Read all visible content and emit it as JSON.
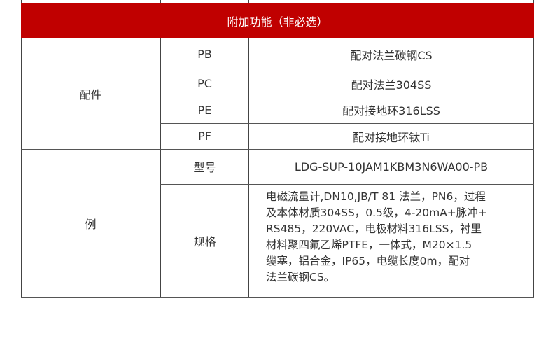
{
  "header": {
    "title": "附加功能（非必选）",
    "color": "#c00000"
  },
  "accessories": {
    "label": "配件",
    "rows": [
      {
        "code": "PB",
        "desc": "配对法兰碳钢CS"
      },
      {
        "code": "PC",
        "desc": "配对法兰304SS"
      },
      {
        "code": "PE",
        "desc": "配对接地环316LSS"
      },
      {
        "code": "PF",
        "desc": "配对接地环钛Ti"
      }
    ]
  },
  "example": {
    "label": "例",
    "model_label": "型号",
    "model_value": "LDG-SUP-10JAM1KBM3N6WA00-PB",
    "spec_label": "规格",
    "spec_lines": [
      "电磁流量计,DN10,JB/T 81 法兰，PN6，过程",
      "及本体材质304SS，0.5级，4-20mA+脉冲+",
      "RS485，220VAC，电极材料316LSS，衬里",
      "材料聚四氟乙烯PTFE，一体式，M20×1.5",
      "缆塞，铝合金，IP65，电缆长度0m，配对",
      "法兰碳钢CS。"
    ]
  }
}
